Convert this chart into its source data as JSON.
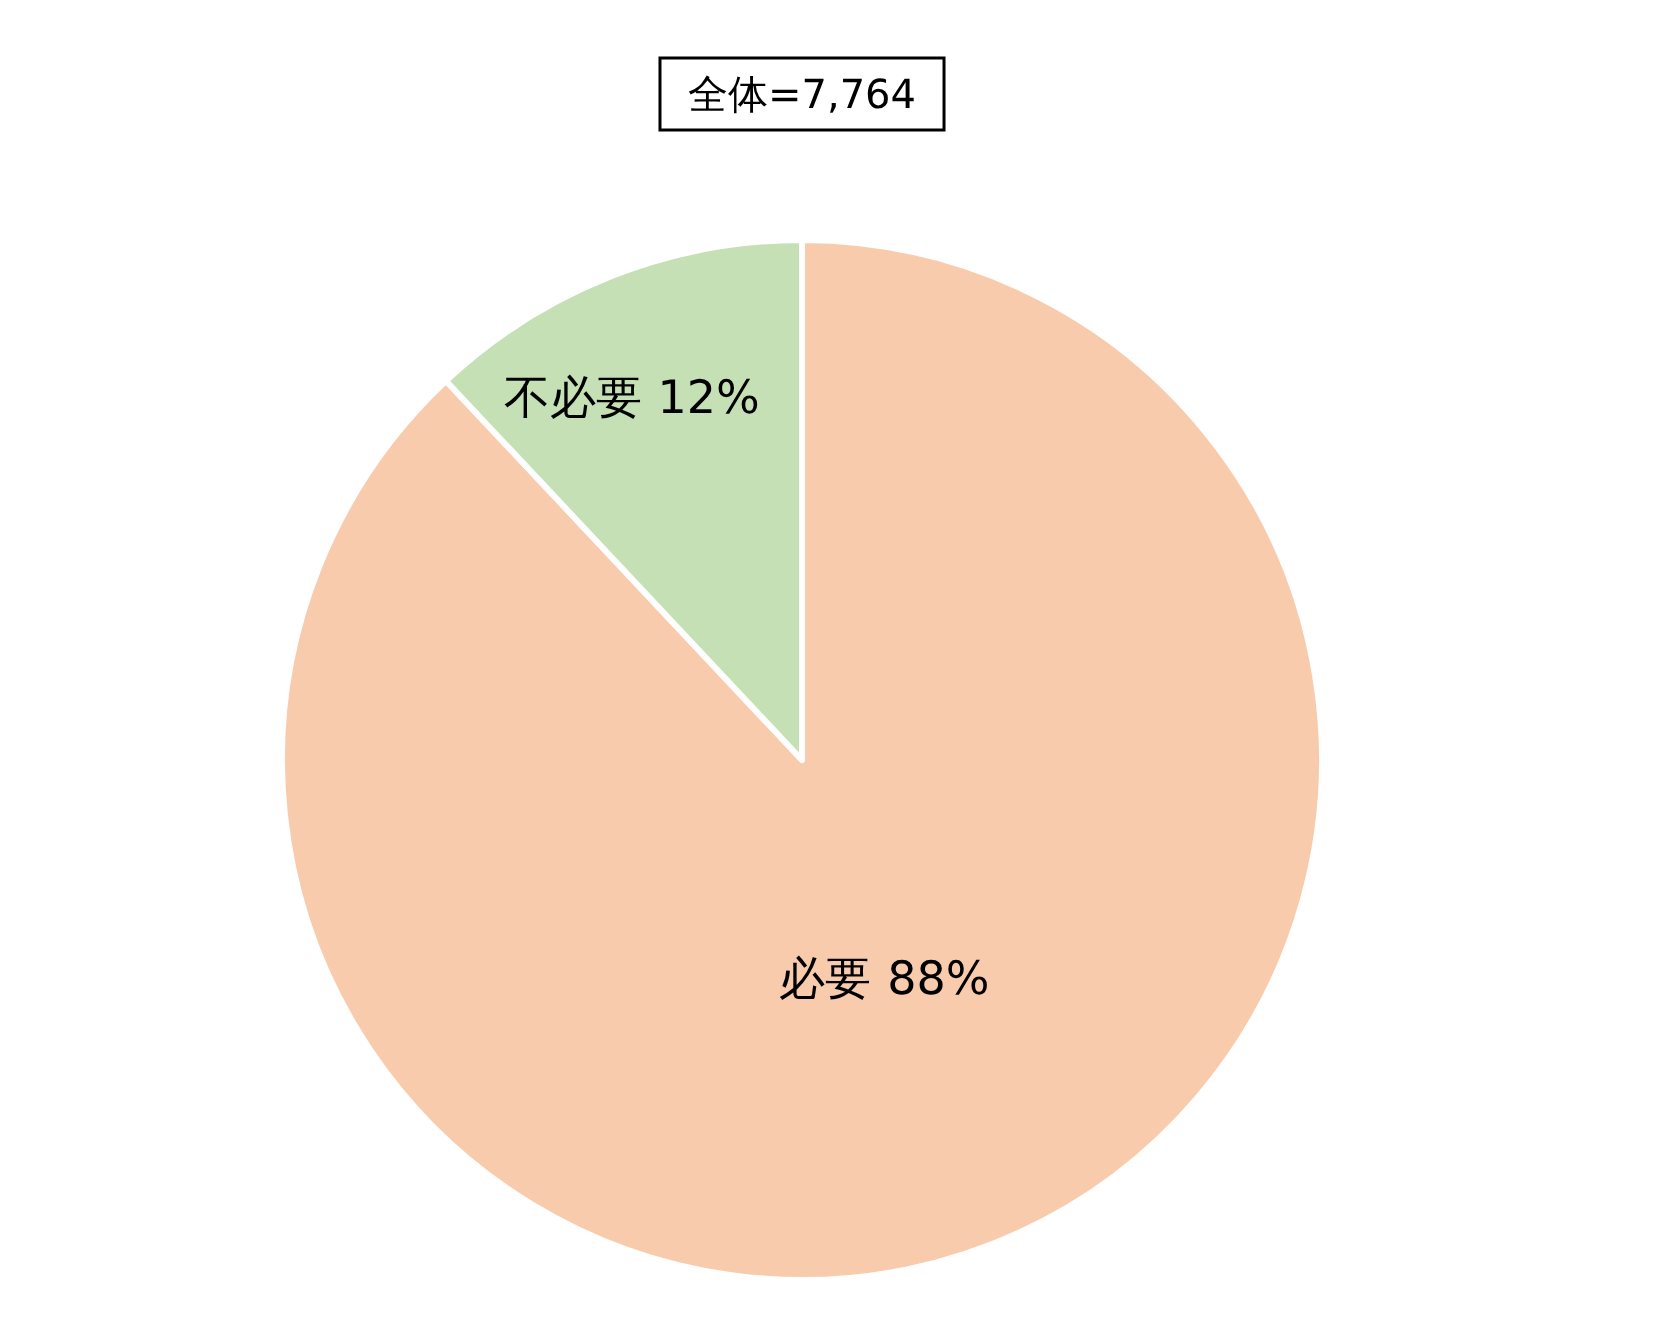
{
  "chart_data": {
    "type": "pie",
    "title": "全体=7,764",
    "categories": [
      "必要",
      "不必要"
    ],
    "values": [
      88,
      12
    ],
    "colors": [
      "#f8cbad",
      "#c5e0b4"
    ],
    "value_labels": [
      "88%",
      "12%"
    ],
    "legend": false
  }
}
